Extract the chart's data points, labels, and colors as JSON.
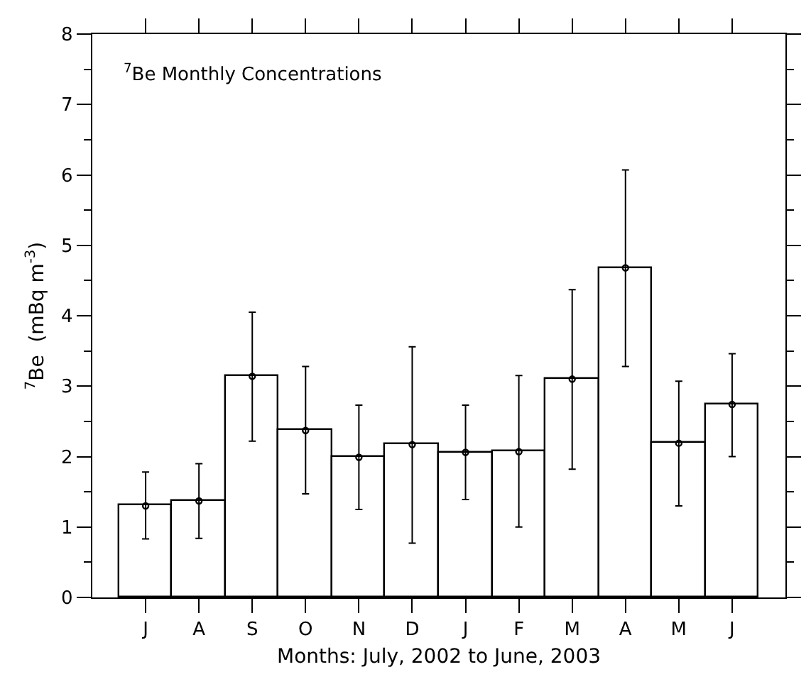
{
  "chart_data": {
    "type": "bar",
    "title": "$^{7}$Be Monthly Concentrations",
    "xlabel": "Months: July, 2002 to June, 2003",
    "ylabel": "$^{7}$Be  (mBq m$^{-3}$)",
    "categories": [
      "J",
      "A",
      "S",
      "O",
      "N",
      "D",
      "J",
      "F",
      "M",
      "A",
      "M",
      "J"
    ],
    "series": [
      {
        "color": "#ffffff",
        "values": [
          1.3,
          1.37,
          3.14,
          2.37,
          1.99,
          2.17,
          2.06,
          2.07,
          3.1,
          4.68,
          2.19,
          2.74
        ]
      },
      {
        "type": "scatter",
        "color": "#000000",
        "marker": "circle",
        "values": [
          1.3,
          1.37,
          3.14,
          2.37,
          1.99,
          2.17,
          2.06,
          2.07,
          3.1,
          4.68,
          2.19,
          2.74
        ],
        "errors": [
          [
            0.83,
            1.78
          ],
          [
            0.84,
            1.9
          ],
          [
            2.22,
            4.05
          ],
          [
            1.47,
            3.28
          ],
          [
            1.25,
            2.73
          ],
          [
            0.77,
            3.56
          ],
          [
            1.39,
            2.73
          ],
          [
            1.0,
            3.15
          ],
          [
            1.82,
            4.37
          ],
          [
            3.28,
            6.07
          ],
          [
            1.3,
            3.07
          ],
          [
            2.0,
            3.46
          ]
        ]
      }
    ],
    "ylim": [
      0,
      8
    ],
    "yticks": [
      0,
      1,
      2,
      3,
      4,
      5,
      6,
      7,
      8
    ]
  }
}
